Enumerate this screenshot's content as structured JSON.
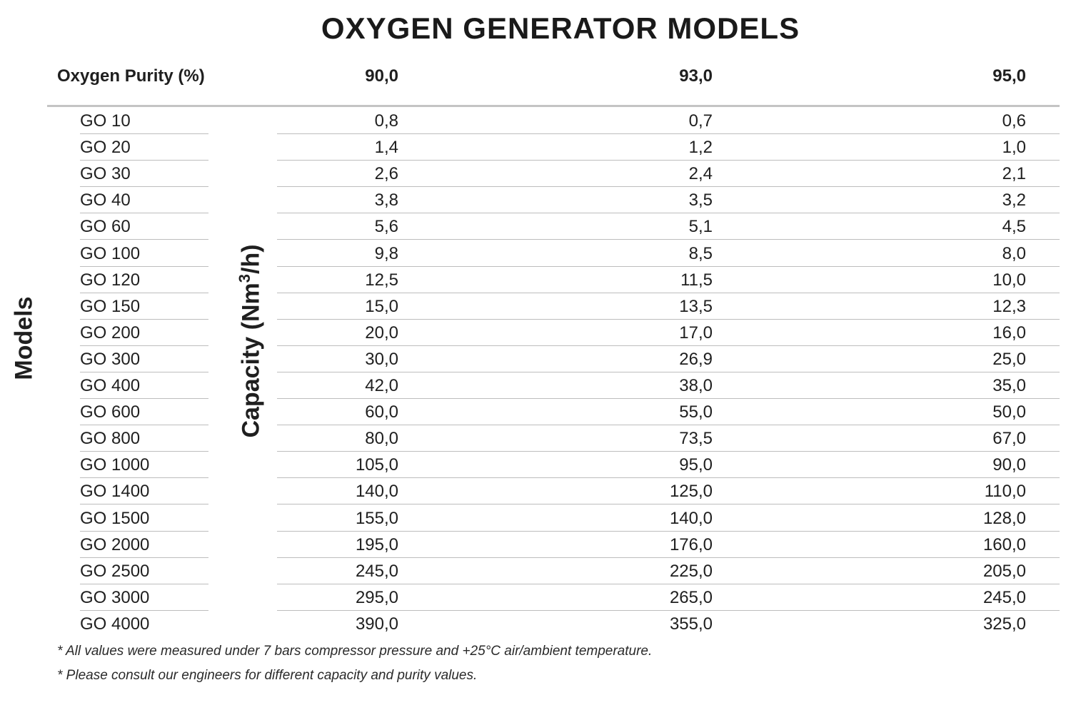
{
  "title": "OXYGEN GENERATOR MODELS",
  "header": {
    "purity_label": "Oxygen Purity (%)",
    "purities": [
      "90,0",
      "93,0",
      "95,0"
    ]
  },
  "side_labels": {
    "models": "Models",
    "capacity_prefix": "Capacity (Nm",
    "capacity_sup": "3",
    "capacity_suffix": "/h)"
  },
  "rows": [
    {
      "model": "GO 10",
      "v90": "0,8",
      "v93": "0,7",
      "v95": "0,6"
    },
    {
      "model": "GO 20",
      "v90": "1,4",
      "v93": "1,2",
      "v95": "1,0"
    },
    {
      "model": "GO 30",
      "v90": "2,6",
      "v93": "2,4",
      "v95": "2,1"
    },
    {
      "model": "GO 40",
      "v90": "3,8",
      "v93": "3,5",
      "v95": "3,2"
    },
    {
      "model": "GO 60",
      "v90": "5,6",
      "v93": "5,1",
      "v95": "4,5"
    },
    {
      "model": "GO 100",
      "v90": "9,8",
      "v93": "8,5",
      "v95": "8,0"
    },
    {
      "model": "GO 120",
      "v90": "12,5",
      "v93": "11,5",
      "v95": "10,0"
    },
    {
      "model": "GO 150",
      "v90": "15,0",
      "v93": "13,5",
      "v95": "12,3"
    },
    {
      "model": "GO 200",
      "v90": "20,0",
      "v93": "17,0",
      "v95": "16,0"
    },
    {
      "model": "GO 300",
      "v90": "30,0",
      "v93": "26,9",
      "v95": "25,0"
    },
    {
      "model": "GO 400",
      "v90": "42,0",
      "v93": "38,0",
      "v95": "35,0"
    },
    {
      "model": "GO 600",
      "v90": "60,0",
      "v93": "55,0",
      "v95": "50,0"
    },
    {
      "model": "GO 800",
      "v90": "80,0",
      "v93": "73,5",
      "v95": "67,0"
    },
    {
      "model": "GO 1000",
      "v90": "105,0",
      "v93": "95,0",
      "v95": "90,0"
    },
    {
      "model": "GO 1400",
      "v90": "140,0",
      "v93": "125,0",
      "v95": "110,0"
    },
    {
      "model": "GO 1500",
      "v90": "155,0",
      "v93": "140,0",
      "v95": "128,0"
    },
    {
      "model": "GO 2000",
      "v90": "195,0",
      "v93": "176,0",
      "v95": "160,0"
    },
    {
      "model": "GO 2500",
      "v90": "245,0",
      "v93": "225,0",
      "v95": "205,0"
    },
    {
      "model": "GO 3000",
      "v90": "295,0",
      "v93": "265,0",
      "v95": "245,0"
    },
    {
      "model": "GO 4000",
      "v90": "390,0",
      "v93": "355,0",
      "v95": "325,0"
    }
  ],
  "notes": [
    "* All values were measured under 7 bars compressor pressure and +25°C air/ambient temperature.",
    "* Please consult our engineers for different capacity and purity values."
  ]
}
